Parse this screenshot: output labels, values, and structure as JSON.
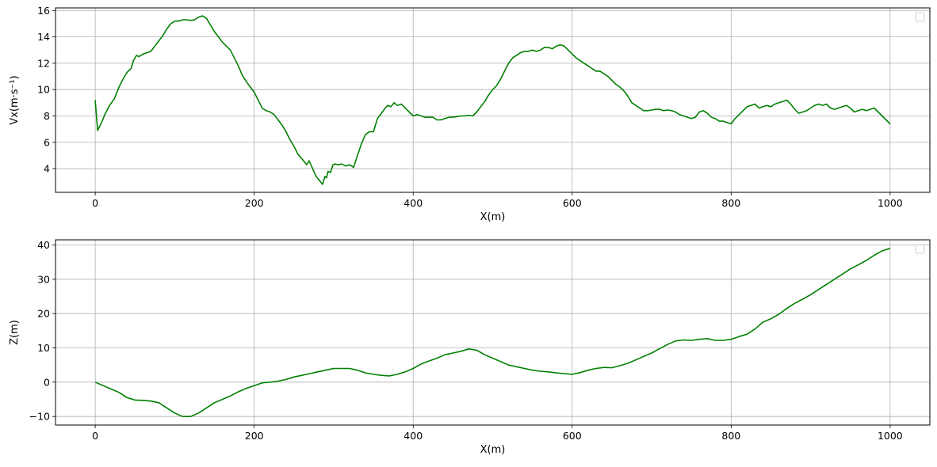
{
  "chart_data": [
    {
      "type": "line",
      "xlabel": "X(m)",
      "ylabel": "Vx(m·s⁻¹)",
      "xlim": [
        -50,
        1050
      ],
      "ylim": [
        2.2,
        16.2
      ],
      "xticks": [
        "0",
        "200",
        "400",
        "600",
        "800",
        "1000"
      ],
      "yticks": [
        "4",
        "6",
        "8",
        "10",
        "12",
        "14",
        "16"
      ],
      "grid": true,
      "legend": "top-right, empty",
      "series": [
        {
          "color": "#008000",
          "x": [
            0,
            3,
            8,
            12,
            18,
            24,
            30,
            35,
            40,
            45,
            48,
            52,
            55,
            60,
            65,
            70,
            75,
            80,
            85,
            90,
            95,
            100,
            105,
            110,
            115,
            120,
            125,
            130,
            135,
            140,
            145,
            150,
            155,
            160,
            165,
            170,
            175,
            180,
            185,
            190,
            195,
            200,
            205,
            210,
            215,
            220,
            225,
            230,
            235,
            240,
            245,
            250,
            255,
            258,
            262,
            266,
            269,
            272,
            275,
            278,
            282,
            286,
            289,
            291,
            293,
            296,
            299,
            302,
            305,
            310,
            315,
            320,
            325,
            330,
            335,
            340,
            345,
            350,
            355,
            360,
            365,
            368,
            372,
            376,
            380,
            385,
            390,
            395,
            400,
            405,
            410,
            415,
            420,
            425,
            430,
            435,
            440,
            445,
            450,
            455,
            460,
            465,
            470,
            475,
            480,
            485,
            490,
            495,
            500,
            505,
            510,
            515,
            520,
            525,
            530,
            535,
            540,
            545,
            550,
            555,
            560,
            565,
            570,
            575,
            580,
            585,
            590,
            595,
            600,
            605,
            610,
            615,
            620,
            625,
            630,
            635,
            640,
            645,
            650,
            655,
            660,
            665,
            670,
            675,
            680,
            685,
            690,
            695,
            700,
            705,
            710,
            715,
            720,
            725,
            730,
            735,
            740,
            745,
            750,
            755,
            760,
            765,
            770,
            775,
            780,
            785,
            790,
            795,
            800,
            805,
            810,
            815,
            820,
            825,
            830,
            835,
            840,
            845,
            850,
            855,
            860,
            865,
            870,
            875,
            880,
            885,
            890,
            895,
            900,
            905,
            910,
            915,
            920,
            925,
            930,
            935,
            940,
            945,
            950,
            955,
            960,
            965,
            970,
            975,
            980,
            985,
            990,
            995,
            1000
          ],
          "y": [
            9.2,
            6.9,
            7.5,
            8.1,
            8.8,
            9.3,
            10.2,
            10.8,
            11.3,
            11.6,
            12.2,
            12.6,
            12.5,
            12.7,
            12.8,
            12.9,
            13.3,
            13.7,
            14.1,
            14.6,
            15.0,
            15.2,
            15.2,
            15.3,
            15.3,
            15.25,
            15.3,
            15.5,
            15.6,
            15.4,
            14.9,
            14.4,
            14.0,
            13.6,
            13.3,
            13.0,
            12.4,
            11.8,
            11.1,
            10.6,
            10.2,
            9.8,
            9.2,
            8.6,
            8.4,
            8.3,
            8.1,
            7.7,
            7.3,
            6.8,
            6.2,
            5.7,
            5.1,
            4.9,
            4.6,
            4.3,
            4.6,
            4.2,
            3.8,
            3.4,
            3.1,
            2.8,
            3.4,
            3.3,
            3.8,
            3.7,
            4.3,
            4.35,
            4.3,
            4.35,
            4.2,
            4.3,
            4.1,
            5.0,
            5.9,
            6.6,
            6.8,
            6.8,
            7.8,
            8.2,
            8.6,
            8.8,
            8.7,
            9.0,
            8.8,
            8.9,
            8.6,
            8.3,
            8.0,
            8.1,
            8.0,
            7.9,
            7.9,
            7.9,
            7.7,
            7.7,
            7.8,
            7.9,
            7.9,
            7.95,
            8.0,
            8.0,
            8.05,
            8.0,
            8.3,
            8.7,
            9.1,
            9.6,
            10.0,
            10.3,
            10.8,
            11.4,
            12.0,
            12.4,
            12.6,
            12.8,
            12.9,
            12.9,
            13.0,
            12.9,
            13.0,
            13.2,
            13.2,
            13.1,
            13.3,
            13.4,
            13.3,
            13.0,
            12.7,
            12.4,
            12.2,
            12.0,
            11.8,
            11.6,
            11.4,
            11.4,
            11.2,
            11.0,
            10.7,
            10.4,
            10.2,
            9.9,
            9.5,
            9.0,
            8.8,
            8.6,
            8.4,
            8.4,
            8.45,
            8.5,
            8.5,
            8.4,
            8.45,
            8.4,
            8.3,
            8.1,
            8.0,
            7.9,
            7.8,
            7.9,
            8.3,
            8.4,
            8.2,
            7.9,
            7.8,
            7.6,
            7.6,
            7.5,
            7.4,
            7.8,
            8.1,
            8.4,
            8.7,
            8.8,
            8.9,
            8.6,
            8.7,
            8.8,
            8.7,
            8.9,
            9.0,
            9.1,
            9.2,
            8.9,
            8.5,
            8.2,
            8.3,
            8.4,
            8.6,
            8.8,
            8.9,
            8.8,
            8.9,
            8.6,
            8.5,
            8.6,
            8.7,
            8.8,
            8.6,
            8.3,
            8.4,
            8.5,
            8.4,
            8.5,
            8.6,
            8.3,
            8.0,
            7.7,
            7.4
          ]
        }
      ]
    },
    {
      "type": "line",
      "xlabel": "X(m)",
      "ylabel": "Z(m)",
      "xlim": [
        -50,
        1050
      ],
      "ylim": [
        -12.5,
        41.5
      ],
      "xticks": [
        "0",
        "200",
        "400",
        "600",
        "800",
        "1000"
      ],
      "yticks": [
        "−10",
        "0",
        "10",
        "20",
        "30",
        "40"
      ],
      "grid": true,
      "legend": "top-right, empty",
      "series": [
        {
          "color": "#008000",
          "x": [
            0,
            10,
            20,
            30,
            40,
            50,
            60,
            70,
            80,
            90,
            100,
            110,
            120,
            130,
            140,
            150,
            160,
            170,
            180,
            190,
            200,
            210,
            220,
            230,
            240,
            250,
            260,
            270,
            280,
            290,
            300,
            310,
            320,
            330,
            340,
            350,
            360,
            370,
            380,
            390,
            400,
            410,
            420,
            430,
            440,
            450,
            460,
            470,
            480,
            490,
            500,
            510,
            520,
            530,
            540,
            550,
            560,
            570,
            580,
            590,
            600,
            610,
            620,
            630,
            640,
            650,
            660,
            670,
            680,
            690,
            700,
            710,
            720,
            730,
            740,
            750,
            760,
            770,
            780,
            790,
            800,
            810,
            820,
            830,
            840,
            850,
            860,
            870,
            880,
            890,
            900,
            910,
            920,
            930,
            940,
            950,
            960,
            970,
            980,
            990,
            1000
          ],
          "y": [
            0,
            -1,
            -2,
            -3,
            -4.5,
            -5.2,
            -5.3,
            -5.5,
            -6.0,
            -7.5,
            -9.0,
            -10.0,
            -10.0,
            -9.0,
            -7.5,
            -6.0,
            -5.0,
            -4.0,
            -2.8,
            -1.8,
            -1.0,
            -0.2,
            0,
            0.3,
            0.8,
            1.5,
            2.0,
            2.5,
            3.0,
            3.5,
            4.0,
            4.0,
            4.0,
            3.5,
            2.7,
            2.3,
            2.0,
            1.8,
            2.3,
            3.0,
            4.0,
            5.3,
            6.2,
            7.0,
            8.0,
            8.5,
            9.0,
            9.7,
            9.3,
            8.0,
            7.0,
            6.0,
            5.0,
            4.5,
            4.0,
            3.5,
            3.2,
            3.0,
            2.7,
            2.5,
            2.3,
            2.8,
            3.5,
            4.0,
            4.3,
            4.2,
            4.8,
            5.5,
            6.5,
            7.5,
            8.5,
            9.8,
            11.0,
            12.0,
            12.3,
            12.2,
            12.5,
            12.7,
            12.2,
            12.2,
            12.5,
            13.3,
            14.0,
            15.5,
            17.5,
            18.5,
            19.8,
            21.5,
            23.0,
            24.2,
            25.5,
            27.0,
            28.5,
            30.0,
            31.5,
            33.0,
            34.2,
            35.5,
            37.0,
            38.3,
            39.0
          ]
        }
      ]
    }
  ]
}
